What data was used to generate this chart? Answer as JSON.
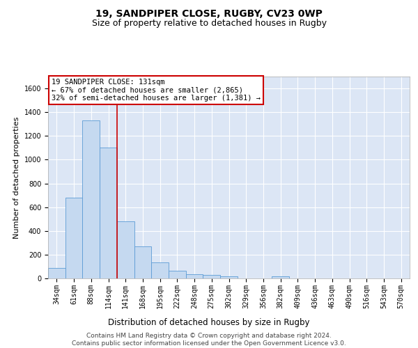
{
  "title1": "19, SANDPIPER CLOSE, RUGBY, CV23 0WP",
  "title2": "Size of property relative to detached houses in Rugby",
  "xlabel": "Distribution of detached houses by size in Rugby",
  "ylabel": "Number of detached properties",
  "categories": [
    "34sqm",
    "61sqm",
    "88sqm",
    "114sqm",
    "141sqm",
    "168sqm",
    "195sqm",
    "222sqm",
    "248sqm",
    "275sqm",
    "302sqm",
    "329sqm",
    "356sqm",
    "382sqm",
    "409sqm",
    "436sqm",
    "463sqm",
    "490sqm",
    "516sqm",
    "543sqm",
    "570sqm"
  ],
  "values": [
    90,
    680,
    1330,
    1100,
    480,
    270,
    135,
    65,
    35,
    30,
    15,
    0,
    0,
    15,
    0,
    0,
    0,
    0,
    0,
    0,
    0
  ],
  "bar_color": "#c5d9f0",
  "bar_edge_color": "#5b9bd5",
  "vline_x": 3.5,
  "vline_color": "#cc0000",
  "annotation_line1": "19 SANDPIPER CLOSE: 131sqm",
  "annotation_line2": "← 67% of detached houses are smaller (2,865)",
  "annotation_line3": "32% of semi-detached houses are larger (1,381) →",
  "annotation_box_facecolor": "#ffffff",
  "annotation_box_edgecolor": "#cc0000",
  "ylim": [
    0,
    1700
  ],
  "yticks": [
    0,
    200,
    400,
    600,
    800,
    1000,
    1200,
    1400,
    1600
  ],
  "background_color": "#dce6f5",
  "grid_color": "#ffffff",
  "fig_facecolor": "#ffffff",
  "title1_fontsize": 10,
  "title2_fontsize": 9,
  "xlabel_fontsize": 8.5,
  "ylabel_fontsize": 8,
  "tick_fontsize": 7,
  "annotation_fontsize": 7.5,
  "footer": "Contains HM Land Registry data © Crown copyright and database right 2024.\nContains public sector information licensed under the Open Government Licence v3.0.",
  "footer_fontsize": 6.5
}
